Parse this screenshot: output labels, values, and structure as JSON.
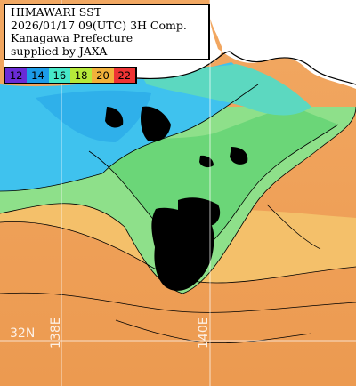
{
  "title": {
    "line1": "HIMAWARI SST",
    "line2": "2026/01/17 09(UTC) 3H Comp.",
    "line3": "Kanagawa Prefecture",
    "line4": "supplied by JAXA"
  },
  "legend": {
    "labels": [
      "12",
      "14",
      "16",
      "18",
      "20",
      "22"
    ],
    "colors": [
      "#6a2bd6",
      "#1c9ce8",
      "#46e8c8",
      "#b6ea3a",
      "#f2b13b",
      "#ee3434"
    ]
  },
  "grid_labels": {
    "latitude": "32N",
    "longitude_1": "138E",
    "longitude_2": "140E"
  },
  "colors": {
    "land": "#ffffff",
    "ocean_warm": "#f0a35a",
    "ocean_mid": "#7cdc8c",
    "ocean_cool": "#3cc8f0",
    "cloud_missing": "#000000"
  }
}
